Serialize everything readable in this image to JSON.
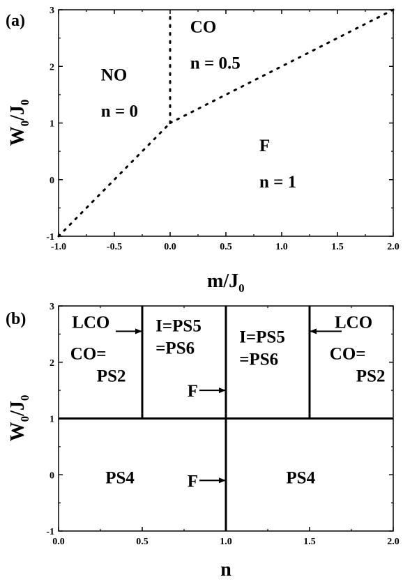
{
  "chart_data": [
    {
      "type": "line",
      "panel_label": "(a)",
      "xlabel": "m/J",
      "xlabel_sub": "0",
      "ylabel": "W",
      "ylabel_sub1": "0",
      "ylabel_mid": "/J",
      "ylabel_sub2": "0",
      "xlim": [
        -1.0,
        2.0
      ],
      "ylim": [
        -1,
        3
      ],
      "x_ticks": [
        -1.0,
        -0.5,
        0.0,
        0.5,
        1.0,
        1.5,
        2.0
      ],
      "x_tick_labels": [
        "-1.0",
        "-0.5",
        "0.0",
        "0.5",
        "1.0",
        "1.5",
        "2.0"
      ],
      "y_ticks": [
        -1,
        0,
        1,
        2,
        3
      ],
      "y_tick_labels": [
        "-1",
        "0",
        "1",
        "2",
        "3"
      ],
      "boundaries": [
        {
          "style": "dotted",
          "points": [
            [
              -1.0,
              -1.0
            ],
            [
              0.0,
              1.0
            ]
          ]
        },
        {
          "style": "dotted",
          "points": [
            [
              0.0,
              1.0
            ],
            [
              2.0,
              3.0
            ]
          ]
        },
        {
          "style": "dotted",
          "points": [
            [
              0.0,
              1.0
            ],
            [
              0.0,
              2.9
            ]
          ]
        }
      ],
      "regions": [
        {
          "name": "NO",
          "detail": "n = 0",
          "at": [
            -0.62,
            1.75
          ]
        },
        {
          "name": "CO",
          "detail": "n = 0.5",
          "at": [
            0.18,
            2.6
          ]
        },
        {
          "name": "F",
          "detail": "n = 1",
          "at": [
            0.8,
            0.5
          ]
        }
      ]
    },
    {
      "type": "line",
      "panel_label": "(b)",
      "xlabel": "n",
      "ylabel": "W",
      "ylabel_sub1": "0",
      "ylabel_mid": "/J",
      "ylabel_sub2": "0",
      "xlim": [
        0.0,
        2.0
      ],
      "ylim": [
        -1,
        3
      ],
      "x_ticks": [
        0.0,
        0.5,
        1.0,
        1.5,
        2.0
      ],
      "x_tick_labels": [
        "0.0",
        "0.5",
        "1.0",
        "1.5",
        "2.0"
      ],
      "y_ticks": [
        -1,
        0,
        1,
        2,
        3
      ],
      "y_tick_labels": [
        "-1",
        "0",
        "1",
        "2",
        "3"
      ],
      "boundaries": [
        {
          "style": "solid",
          "points": [
            [
              0.0,
              1.0
            ],
            [
              2.0,
              1.0
            ]
          ]
        },
        {
          "style": "solid",
          "points": [
            [
              1.0,
              -1.0
            ],
            [
              1.0,
              3.0
            ]
          ]
        },
        {
          "style": "solid",
          "points": [
            [
              0.5,
              1.0
            ],
            [
              0.5,
              3.0
            ]
          ]
        },
        {
          "style": "solid",
          "points": [
            [
              1.5,
              1.0
            ],
            [
              1.5,
              3.0
            ]
          ]
        }
      ],
      "regions": [
        {
          "lines": [
            "CO=",
            "PS2"
          ],
          "at": [
            0.07,
            2.05
          ]
        },
        {
          "lines": [
            "I=PS5",
            "=PS6"
          ],
          "at": [
            0.58,
            2.55
          ]
        },
        {
          "lines": [
            "I=PS5",
            "=PS6"
          ],
          "at": [
            1.08,
            2.35
          ]
        },
        {
          "lines": [
            "CO=",
            "PS2"
          ],
          "at": [
            1.62,
            2.05
          ]
        },
        {
          "lines": [
            "PS4"
          ],
          "at": [
            0.28,
            -0.15
          ]
        },
        {
          "lines": [
            "PS4"
          ],
          "at": [
            1.36,
            -0.15
          ]
        }
      ],
      "annotations": [
        {
          "text": "LCO",
          "direction": "right",
          "target": [
            0.5,
            2.55
          ],
          "text_at": [
            0.08,
            2.72
          ]
        },
        {
          "text": "LCO",
          "direction": "left",
          "target": [
            1.5,
            2.55
          ],
          "text_at": [
            1.65,
            2.72
          ]
        },
        {
          "text": "F",
          "direction": "right",
          "target": [
            1.0,
            1.5
          ],
          "text_at": [
            0.77,
            1.5
          ]
        },
        {
          "text": "F",
          "direction": "right",
          "target": [
            1.0,
            -0.1
          ],
          "text_at": [
            0.77,
            -0.1
          ]
        }
      ]
    }
  ]
}
